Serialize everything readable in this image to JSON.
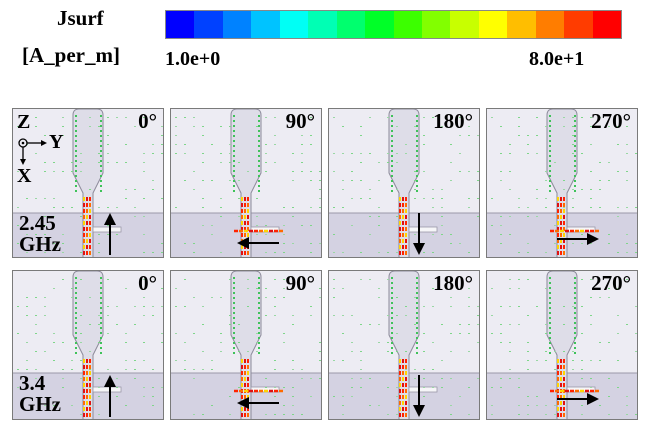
{
  "legend": {
    "title_line1": "Jsurf",
    "title_line2": "[A_per_m]",
    "min_label": "1.0e+0",
    "max_label": "8.0e+1",
    "colors": [
      "#0000ff",
      "#0041ff",
      "#0082ff",
      "#00c3ff",
      "#00fff5",
      "#00ffb4",
      "#00ff6e",
      "#00ff28",
      "#3cff00",
      "#82ff00",
      "#c8ff00",
      "#ffff00",
      "#ffbe00",
      "#ff7d00",
      "#ff3c00",
      "#ff0000"
    ]
  },
  "axes": {
    "z": "Z",
    "y": "Y",
    "x": "X"
  },
  "rows": [
    {
      "freq_line1": "2.45",
      "freq_line2": "GHz",
      "panels": [
        {
          "angle": "0°",
          "arrow": "up"
        },
        {
          "angle": "90°",
          "arrow": "left"
        },
        {
          "angle": "180°",
          "arrow": "down"
        },
        {
          "angle": "270°",
          "arrow": "right"
        }
      ]
    },
    {
      "freq_line1": "3.4",
      "freq_line2": "GHz",
      "panels": [
        {
          "angle": "0°",
          "arrow": "up"
        },
        {
          "angle": "90°",
          "arrow": "left"
        },
        {
          "angle": "180°",
          "arrow": "down"
        },
        {
          "angle": "270°",
          "arrow": "right"
        }
      ]
    }
  ]
}
